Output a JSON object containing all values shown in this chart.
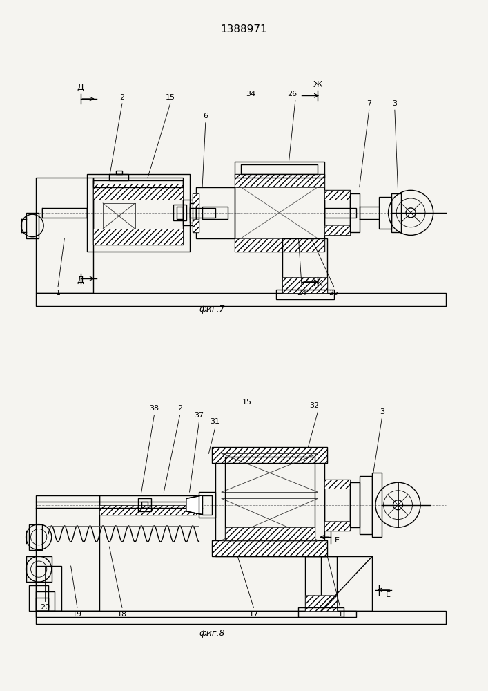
{
  "title": "1388971",
  "fig1_label": "фиг.7",
  "fig2_label": "фиг.8",
  "bg_color": "#f5f4f0",
  "lw": 1.0,
  "tlw": 0.6
}
